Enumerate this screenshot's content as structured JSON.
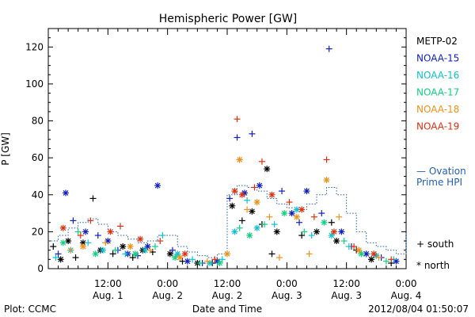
{
  "chart_data": {
    "type": "scatter",
    "title": "Hemispheric Power [GW]",
    "xlabel": "Date and Time",
    "ylabel": "P [GW]",
    "x_start": "2012-08-01T00:00",
    "x_end": "2012-08-04T00:00",
    "ylim": [
      0,
      130
    ],
    "yticks": [
      0,
      20,
      40,
      60,
      80,
      100,
      120
    ],
    "xticks": [
      {
        "t": "2012-08-01T12:00",
        "time": "12:00",
        "date": "Aug. 1"
      },
      {
        "t": "2012-08-02T00:00",
        "time": "0:00",
        "date": "Aug. 2"
      },
      {
        "t": "2012-08-02T12:00",
        "time": "12:00",
        "date": "Aug. 2"
      },
      {
        "t": "2012-08-03T00:00",
        "time": "0:00",
        "date": "Aug. 3"
      },
      {
        "t": "2012-08-03T12:00",
        "time": "12:00",
        "date": "Aug. 3"
      },
      {
        "t": "2012-08-04T00:00",
        "time": "0:00",
        "date": "Aug. 4"
      }
    ],
    "legend_placement": "right",
    "series": [
      {
        "name": "METP-02",
        "color": "#000000",
        "points": [
          [
            "2012-08-01T01:00",
            12,
            "+"
          ],
          [
            "2012-08-01T02:30",
            5,
            "*"
          ],
          [
            "2012-08-01T04:00",
            15,
            "*"
          ],
          [
            "2012-08-01T05:30",
            6,
            "+"
          ],
          [
            "2012-08-01T07:00",
            14,
            "*"
          ],
          [
            "2012-08-01T09:00",
            38,
            "+"
          ],
          [
            "2012-08-01T10:30",
            10,
            "*"
          ],
          [
            "2012-08-01T13:00",
            8,
            "+"
          ],
          [
            "2012-08-01T15:00",
            12,
            "*"
          ],
          [
            "2012-08-01T17:00",
            6,
            "+"
          ],
          [
            "2012-08-01T19:00",
            10,
            "*"
          ],
          [
            "2012-08-01T21:00",
            9,
            "+"
          ],
          [
            "2012-08-02T00:30",
            8,
            "*"
          ],
          [
            "2012-08-02T03:00",
            4,
            "+"
          ],
          [
            "2012-08-02T06:00",
            3,
            "*"
          ],
          [
            "2012-08-02T09:00",
            3,
            "+"
          ],
          [
            "2012-08-02T13:00",
            34,
            "*"
          ],
          [
            "2012-08-02T15:00",
            26,
            "+"
          ],
          [
            "2012-08-02T17:00",
            31,
            "*"
          ],
          [
            "2012-08-02T19:00",
            24,
            "+"
          ],
          [
            "2012-08-02T20:00",
            54,
            "*"
          ],
          [
            "2012-08-02T21:00",
            8,
            "+"
          ],
          [
            "2012-08-02T22:00",
            20,
            "*"
          ],
          [
            "2012-08-03T03:00",
            18,
            "+"
          ],
          [
            "2012-08-03T06:00",
            20,
            "*"
          ],
          [
            "2012-08-03T09:00",
            25,
            "+"
          ],
          [
            "2012-08-03T10:00",
            15,
            "*"
          ],
          [
            "2012-08-03T14:00",
            10,
            "+"
          ],
          [
            "2012-08-03T17:00",
            5,
            "*"
          ],
          [
            "2012-08-03T21:00",
            3,
            "+"
          ]
        ]
      },
      {
        "name": "NOAA-15",
        "color": "#1020c0",
        "points": [
          [
            "2012-08-01T02:00",
            8,
            "+"
          ],
          [
            "2012-08-01T03:30",
            41,
            "*"
          ],
          [
            "2012-08-01T05:00",
            26,
            "+"
          ],
          [
            "2012-08-01T07:30",
            20,
            "*"
          ],
          [
            "2012-08-01T10:00",
            18,
            "+"
          ],
          [
            "2012-08-01T12:00",
            15,
            "*"
          ],
          [
            "2012-08-01T14:00",
            10,
            "+"
          ],
          [
            "2012-08-01T16:00",
            8,
            "*"
          ],
          [
            "2012-08-01T18:00",
            7,
            "+"
          ],
          [
            "2012-08-01T20:00",
            12,
            "*"
          ],
          [
            "2012-08-01T22:00",
            45,
            "*"
          ],
          [
            "2012-08-02T01:00",
            10,
            "+"
          ],
          [
            "2012-08-02T04:00",
            4,
            "*"
          ],
          [
            "2012-08-02T07:00",
            3,
            "+"
          ],
          [
            "2012-08-02T10:00",
            4,
            "*"
          ],
          [
            "2012-08-02T12:30",
            38,
            "+"
          ],
          [
            "2012-08-02T14:00",
            71,
            "+"
          ],
          [
            "2012-08-02T15:30",
            41,
            "*"
          ],
          [
            "2012-08-02T17:00",
            73,
            "+"
          ],
          [
            "2012-08-02T18:30",
            45,
            "*"
          ],
          [
            "2012-08-02T23:00",
            42,
            "+"
          ],
          [
            "2012-08-03T01:00",
            30,
            "*"
          ],
          [
            "2012-08-03T02:30",
            25,
            "+"
          ],
          [
            "2012-08-03T04:00",
            42,
            "*"
          ],
          [
            "2012-08-03T07:00",
            30,
            "+"
          ],
          [
            "2012-08-03T08:30",
            119,
            "+"
          ],
          [
            "2012-08-03T11:00",
            20,
            "*"
          ],
          [
            "2012-08-03T13:00",
            12,
            "+"
          ],
          [
            "2012-08-03T16:00",
            8,
            "*"
          ],
          [
            "2012-08-03T19:00",
            6,
            "+"
          ],
          [
            "2012-08-03T22:00",
            4,
            "*"
          ]
        ]
      },
      {
        "name": "NOAA-16",
        "color": "#10c0d0",
        "points": [
          [
            "2012-08-01T01:30",
            6,
            "+"
          ],
          [
            "2012-08-01T04:30",
            10,
            "*"
          ],
          [
            "2012-08-01T08:00",
            14,
            "+"
          ],
          [
            "2012-08-01T11:00",
            10,
            "*"
          ],
          [
            "2012-08-01T15:30",
            8,
            "+"
          ],
          [
            "2012-08-01T19:30",
            10,
            "*"
          ],
          [
            "2012-08-01T23:00",
            18,
            "+"
          ],
          [
            "2012-08-02T02:00",
            8,
            "*"
          ],
          [
            "2012-08-02T05:00",
            5,
            "+"
          ],
          [
            "2012-08-02T08:30",
            3,
            "*"
          ],
          [
            "2012-08-02T11:00",
            5,
            "+"
          ],
          [
            "2012-08-02T13:30",
            20,
            "*"
          ],
          [
            "2012-08-02T16:00",
            37,
            "+"
          ],
          [
            "2012-08-02T18:00",
            22,
            "*"
          ],
          [
            "2012-08-02T21:30",
            24,
            "+"
          ],
          [
            "2012-08-03T02:00",
            32,
            "*"
          ],
          [
            "2012-08-03T05:00",
            18,
            "+"
          ],
          [
            "2012-08-03T09:00",
            18,
            "*"
          ],
          [
            "2012-08-03T12:30",
            12,
            "+"
          ],
          [
            "2012-08-03T18:00",
            7,
            "*"
          ],
          [
            "2012-08-03T21:30",
            5,
            "+"
          ]
        ]
      },
      {
        "name": "NOAA-17",
        "color": "#10d080",
        "points": [
          [
            "2012-08-01T03:00",
            14,
            "*"
          ],
          [
            "2012-08-01T06:00",
            20,
            "+"
          ],
          [
            "2012-08-01T09:30",
            8,
            "*"
          ],
          [
            "2012-08-01T13:30",
            10,
            "+"
          ],
          [
            "2012-08-01T17:30",
            8,
            "*"
          ],
          [
            "2012-08-01T21:30",
            12,
            "+"
          ],
          [
            "2012-08-02T01:30",
            6,
            "*"
          ],
          [
            "2012-08-02T06:30",
            3,
            "+"
          ],
          [
            "2012-08-02T10:30",
            3,
            "*"
          ],
          [
            "2012-08-02T14:30",
            22,
            "+"
          ],
          [
            "2012-08-02T16:30",
            18,
            "*"
          ],
          [
            "2012-08-02T19:30",
            24,
            "+"
          ],
          [
            "2012-08-02T23:30",
            30,
            "*"
          ],
          [
            "2012-08-03T03:30",
            20,
            "+"
          ],
          [
            "2012-08-03T07:30",
            25,
            "*"
          ],
          [
            "2012-08-03T11:30",
            15,
            "+"
          ],
          [
            "2012-08-03T15:00",
            8,
            "*"
          ],
          [
            "2012-08-03T20:00",
            4,
            "+"
          ]
        ]
      },
      {
        "name": "NOAA-18",
        "color": "#f0901a",
        "points": [
          [
            "2012-08-01T04:30",
            10,
            "+"
          ],
          [
            "2012-08-01T07:00",
            12,
            "*"
          ],
          [
            "2012-08-01T11:30",
            14,
            "+"
          ],
          [
            "2012-08-01T16:30",
            12,
            "*"
          ],
          [
            "2012-08-01T20:30",
            10,
            "+"
          ],
          [
            "2012-08-02T02:30",
            6,
            "*"
          ],
          [
            "2012-08-02T08:00",
            4,
            "+"
          ],
          [
            "2012-08-02T12:00",
            8,
            "*"
          ],
          [
            "2012-08-02T14:30",
            59,
            "*"
          ],
          [
            "2012-08-02T16:00",
            32,
            "+"
          ],
          [
            "2012-08-02T18:00",
            36,
            "*"
          ],
          [
            "2012-08-02T20:30",
            28,
            "+"
          ],
          [
            "2012-08-02T22:30",
            6,
            "+"
          ],
          [
            "2012-08-03T02:00",
            28,
            "*"
          ],
          [
            "2012-08-03T04:30",
            8,
            "+"
          ],
          [
            "2012-08-03T08:00",
            48,
            "*"
          ],
          [
            "2012-08-03T10:30",
            28,
            "+"
          ],
          [
            "2012-08-03T14:30",
            10,
            "*"
          ],
          [
            "2012-08-03T18:30",
            6,
            "+"
          ]
        ]
      },
      {
        "name": "NOAA-19",
        "color": "#e03010",
        "points": [
          [
            "2012-08-01T03:00",
            22,
            "*"
          ],
          [
            "2012-08-01T06:30",
            18,
            "+"
          ],
          [
            "2012-08-01T08:30",
            26,
            "+"
          ],
          [
            "2012-08-01T12:30",
            20,
            "*"
          ],
          [
            "2012-08-01T14:30",
            23,
            "+"
          ],
          [
            "2012-08-01T18:30",
            16,
            "*"
          ],
          [
            "2012-08-01T22:30",
            15,
            "+"
          ],
          [
            "2012-08-02T03:30",
            8,
            "*"
          ],
          [
            "2012-08-02T09:30",
            5,
            "+"
          ],
          [
            "2012-08-02T13:30",
            42,
            "*"
          ],
          [
            "2012-08-02T14:00",
            81,
            "+"
          ],
          [
            "2012-08-02T15:00",
            40,
            "*"
          ],
          [
            "2012-08-02T17:30",
            44,
            "+"
          ],
          [
            "2012-08-02T19:00",
            58,
            "+"
          ],
          [
            "2012-08-02T21:00",
            40,
            "*"
          ],
          [
            "2012-08-03T00:30",
            36,
            "+"
          ],
          [
            "2012-08-03T03:00",
            32,
            "*"
          ],
          [
            "2012-08-03T05:30",
            28,
            "+"
          ],
          [
            "2012-08-03T08:00",
            59,
            "+"
          ],
          [
            "2012-08-03T09:30",
            20,
            "*"
          ],
          [
            "2012-08-03T13:30",
            12,
            "+"
          ],
          [
            "2012-08-03T17:30",
            8,
            "*"
          ],
          [
            "2012-08-03T21:00",
            5,
            "+"
          ]
        ]
      }
    ],
    "ovation": {
      "name_line1": "— Ovation",
      "name_line2": "Prime HPI",
      "color": "#1f5fb5",
      "points": [
        [
          "2012-08-01T00:00",
          15
        ],
        [
          "2012-08-01T02:00",
          18
        ],
        [
          "2012-08-01T04:00",
          22
        ],
        [
          "2012-08-01T06:00",
          25
        ],
        [
          "2012-08-01T08:00",
          27
        ],
        [
          "2012-08-01T10:00",
          24
        ],
        [
          "2012-08-01T12:00",
          20
        ],
        [
          "2012-08-01T14:00",
          18
        ],
        [
          "2012-08-01T16:00",
          16
        ],
        [
          "2012-08-01T18:00",
          14
        ],
        [
          "2012-08-01T20:00",
          15
        ],
        [
          "2012-08-01T22:00",
          18
        ],
        [
          "2012-08-02T00:00",
          18
        ],
        [
          "2012-08-02T02:00",
          12
        ],
        [
          "2012-08-02T04:00",
          9
        ],
        [
          "2012-08-02T06:00",
          7
        ],
        [
          "2012-08-02T08:00",
          6
        ],
        [
          "2012-08-02T10:00",
          8
        ],
        [
          "2012-08-02T11:30",
          9
        ],
        [
          "2012-08-02T12:00",
          40
        ],
        [
          "2012-08-02T14:00",
          45
        ],
        [
          "2012-08-02T16:00",
          44
        ],
        [
          "2012-08-02T18:00",
          42
        ],
        [
          "2012-08-02T20:00",
          38
        ],
        [
          "2012-08-02T22:00",
          35
        ],
        [
          "2012-08-03T00:00",
          33
        ],
        [
          "2012-08-03T02:00",
          32
        ],
        [
          "2012-08-03T04:00",
          35
        ],
        [
          "2012-08-03T06:00",
          40
        ],
        [
          "2012-08-03T08:00",
          44
        ],
        [
          "2012-08-03T10:00",
          40
        ],
        [
          "2012-08-03T12:00",
          30
        ],
        [
          "2012-08-03T14:00",
          20
        ],
        [
          "2012-08-03T16:00",
          14
        ],
        [
          "2012-08-03T18:00",
          12
        ],
        [
          "2012-08-03T20:00",
          10
        ],
        [
          "2012-08-03T22:00",
          8
        ],
        [
          "2012-08-04T00:00",
          20
        ]
      ]
    },
    "symbol_key": [
      {
        "symbol": "+",
        "label": "south"
      },
      {
        "symbol": "*",
        "label": "north"
      }
    ]
  },
  "footer": {
    "left": "Plot: CCMC",
    "right": "2012/08/04 01:50:07"
  }
}
